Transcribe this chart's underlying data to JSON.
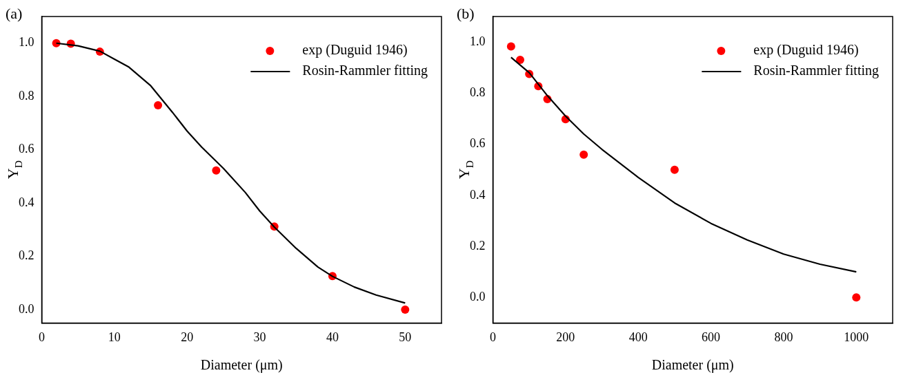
{
  "chart_data": [
    {
      "type": "scatter",
      "title": "(a)",
      "xlabel": "Diameter (μm)",
      "ylabel": "Y$_{D}$",
      "xlim": [
        0,
        55
      ],
      "xticks": [
        0,
        10,
        20,
        30,
        40,
        50
      ],
      "ylim": [
        -0.05,
        1.1
      ],
      "yticks": [
        {
          "value": 0,
          "label": "0.0"
        },
        {
          "value": 0.2,
          "label": "0.2"
        },
        {
          "value": 0.4,
          "label": "0.4"
        },
        {
          "value": 0.6,
          "label": "0.6"
        },
        {
          "value": 0.8,
          "label": "0.8"
        },
        {
          "value": 1,
          "label": "1.0"
        }
      ],
      "legend": "top right",
      "grid": false,
      "series": [
        {
          "name": "exp (Duguid 1946)",
          "type": "scatter",
          "color": "#ff0000",
          "x": [
            2,
            4,
            8,
            16,
            24,
            32,
            40,
            50
          ],
          "values": [
            1.0,
            0.998,
            0.968,
            0.767,
            0.522,
            0.312,
            0.126,
            0.0
          ]
        },
        {
          "name": "Rosin-Rammler fitting",
          "type": "line",
          "color": "#000000",
          "x": [
            2,
            5,
            8,
            10,
            12,
            15,
            18,
            20,
            22,
            25,
            28,
            30,
            32,
            35,
            38,
            40,
            43,
            46,
            50
          ],
          "values": [
            1.0,
            0.99,
            0.97,
            0.94,
            0.91,
            0.84,
            0.74,
            0.67,
            0.61,
            0.53,
            0.44,
            0.37,
            0.31,
            0.23,
            0.16,
            0.125,
            0.085,
            0.055,
            0.025
          ]
        }
      ]
    },
    {
      "type": "scatter",
      "title": "(b)",
      "xlabel": "Diameter (μm)",
      "ylabel": "Y$_{D}$",
      "xlim": [
        0,
        1100
      ],
      "xticks": [
        0,
        200,
        400,
        600,
        800,
        1000
      ],
      "ylim": [
        -0.1,
        1.1
      ],
      "yticks": [
        {
          "value": 0,
          "label": "0.0"
        },
        {
          "value": 0.2,
          "label": "0.2"
        },
        {
          "value": 0.4,
          "label": "0.4"
        },
        {
          "value": 0.6,
          "label": "0.6"
        },
        {
          "value": 0.8,
          "label": "0.8"
        },
        {
          "value": 1,
          "label": "1.0"
        }
      ],
      "legend": "top right",
      "grid": false,
      "series": [
        {
          "name": "exp (Duguid 1946)",
          "type": "scatter",
          "color": "#ff0000",
          "x": [
            50,
            75,
            100,
            125,
            150,
            200,
            250,
            500,
            1000
          ],
          "values": [
            0.983,
            0.93,
            0.875,
            0.827,
            0.777,
            0.698,
            0.559,
            0.5,
            0.0
          ]
        },
        {
          "name": "Rosin-Rammler fitting",
          "type": "line",
          "color": "#000000",
          "x": [
            50,
            100,
            150,
            200,
            250,
            300,
            400,
            500,
            600,
            700,
            800,
            900,
            1000
          ],
          "values": [
            0.94,
            0.88,
            0.79,
            0.71,
            0.64,
            0.58,
            0.47,
            0.37,
            0.29,
            0.225,
            0.17,
            0.13,
            0.1
          ]
        }
      ]
    }
  ]
}
